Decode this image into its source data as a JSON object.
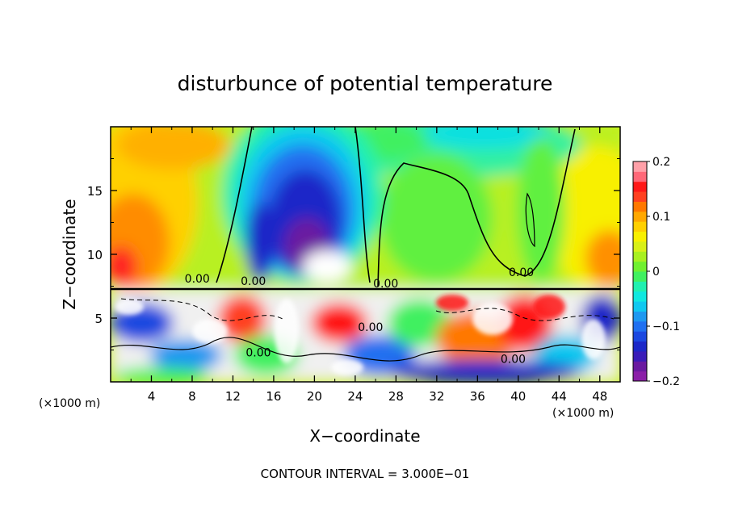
{
  "chart_data": {
    "type": "heatmap",
    "title": "disturbunce of potential temperature",
    "xlabel": "X−coordinate",
    "ylabel": "Z−coordinate",
    "x_unit_left": "(×1000 m)",
    "x_unit_right": "(×1000 m)",
    "xlim": [
      0,
      50
    ],
    "ylim": [
      0,
      20
    ],
    "x_ticks": [
      {
        "value": 4,
        "label": "4"
      },
      {
        "value": 8,
        "label": "8"
      },
      {
        "value": 12,
        "label": "12"
      },
      {
        "value": 16,
        "label": "16"
      },
      {
        "value": 20,
        "label": "20"
      },
      {
        "value": 24,
        "label": "24"
      },
      {
        "value": 28,
        "label": "28"
      },
      {
        "value": 32,
        "label": "32"
      },
      {
        "value": 36,
        "label": "36"
      },
      {
        "value": 40,
        "label": "40"
      },
      {
        "value": 44,
        "label": "44"
      },
      {
        "value": 48,
        "label": "48"
      }
    ],
    "y_ticks": [
      {
        "value": 5,
        "label": "5"
      },
      {
        "value": 10,
        "label": "10"
      },
      {
        "value": 15,
        "label": "15"
      }
    ],
    "colorbar": {
      "range": [
        -0.2,
        0.2
      ],
      "ticks": [
        {
          "value": 0.2,
          "label": "0.2"
        },
        {
          "value": 0.1,
          "label": "0.1"
        },
        {
          "value": 0,
          "label": "0"
        },
        {
          "value": -0.1,
          "label": "−0.1"
        },
        {
          "value": -0.2,
          "label": "−0.2"
        }
      ],
      "colors": [
        "#8b1fa8",
        "#6a1aa0",
        "#3a1cb8",
        "#1c28c8",
        "#1b48e0",
        "#2070f0",
        "#1e98f0",
        "#10c8f0",
        "#10e8e0",
        "#20f0b0",
        "#40f060",
        "#70f030",
        "#a8f020",
        "#d8f018",
        "#f8f000",
        "#ffd000",
        "#ffa800",
        "#ff7800",
        "#ff4020",
        "#ff1818",
        "#ff6878",
        "#ffa0a8"
      ]
    },
    "contour_labels": [
      {
        "x": 8.5,
        "z": 7.8,
        "text": "0.00"
      },
      {
        "x": 14,
        "z": 7.6,
        "text": "0.00"
      },
      {
        "x": 27,
        "z": 7.4,
        "text": "0.00"
      },
      {
        "x": 40.3,
        "z": 8.3,
        "text": "0.00"
      },
      {
        "x": 25.5,
        "z": 4.0,
        "text": "0.00"
      },
      {
        "x": 14.5,
        "z": 2.0,
        "text": "0.00"
      },
      {
        "x": 39.5,
        "z": 1.5,
        "text": "0.00"
      }
    ],
    "annotation": "CONTOUR INTERVAL = 3.000E−01"
  }
}
